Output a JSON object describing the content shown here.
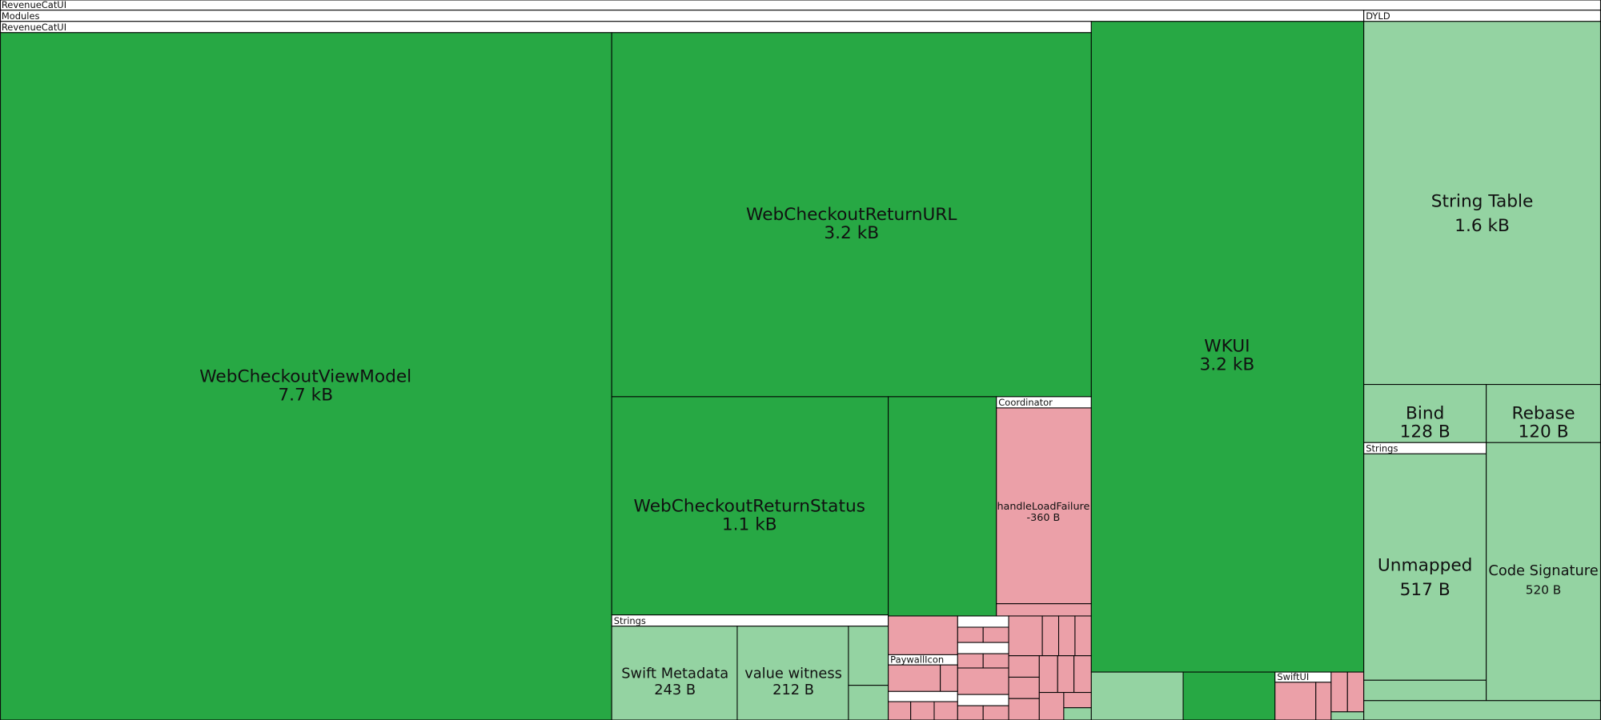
{
  "headers": {
    "root": "RevenueCatUI",
    "modules": "Modules",
    "dyld": "DYLD",
    "module": "RevenueCatUI",
    "coordinator": "Coordinator",
    "strings_left": "Strings",
    "paywall_icon": "PaywallIcon",
    "swiftui": "SwiftUI",
    "strings_right": "Strings"
  },
  "nodes": [
    {
      "label": "WebCheckoutViewModel",
      "size": "7.7 kB"
    },
    {
      "label": "WebCheckoutReturnURL",
      "size": "3.2 kB"
    },
    {
      "label": "WebCheckoutReturnStatus",
      "size": "1.1 kB"
    },
    {
      "label": "handleLoadFailure",
      "size": "-360 B"
    },
    {
      "label": "Swift Metadata",
      "size": "243 B"
    },
    {
      "label": "value witness",
      "size": "212 B"
    },
    {
      "label": "WKUI",
      "size": "3.2 kB"
    },
    {
      "label": "String Table",
      "size": "1.6 kB"
    },
    {
      "label": "Bind",
      "size": "128 B"
    },
    {
      "label": "Rebase",
      "size": "120 B"
    },
    {
      "label": "Unmapped",
      "size": "517 B"
    },
    {
      "label": "Code Signature",
      "size": "520 B"
    }
  ]
}
